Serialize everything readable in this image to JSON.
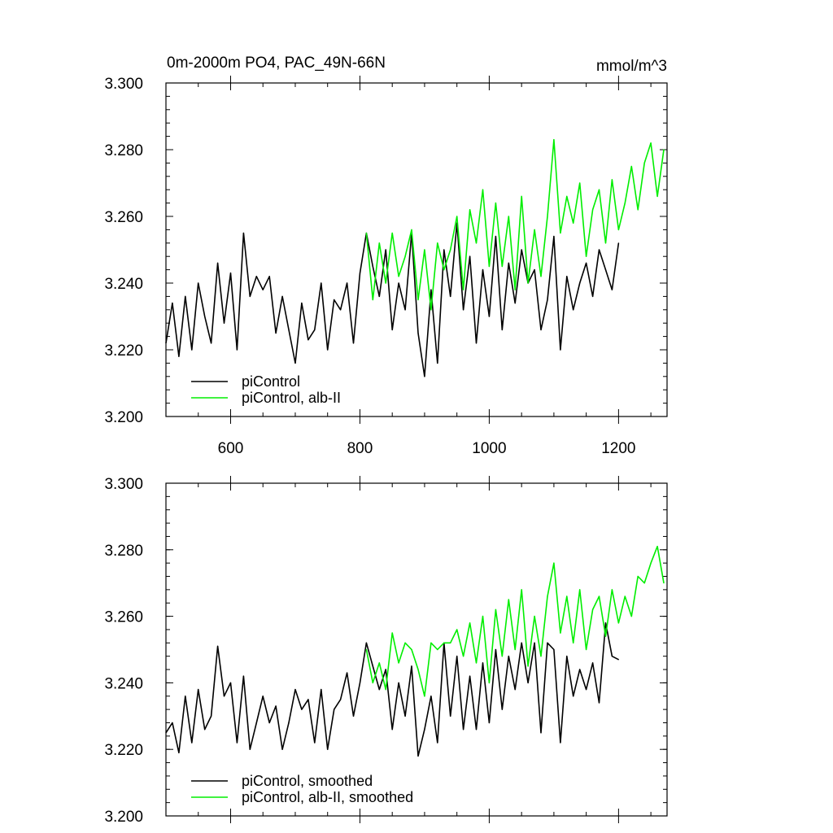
{
  "chart_data": [
    {
      "type": "line",
      "title_left": "0m-2000m PO4, PAC_49N-66N",
      "title_right": "mmol/m^3",
      "xlabel": "",
      "ylabel": "",
      "xlim": [
        500,
        1275
      ],
      "ylim": [
        3.2,
        3.3
      ],
      "x_ticks": [
        "600",
        "800",
        "1000",
        "1200"
      ],
      "y_ticks": [
        "3.200",
        "3.220",
        "3.240",
        "3.260",
        "3.280",
        "3.300"
      ],
      "legend": [
        "piControl",
        "piControl, alb-II"
      ],
      "legend_position": "bottom-left",
      "series": [
        {
          "name": "piControl",
          "color": "#000000",
          "x": [
            500,
            510,
            520,
            530,
            540,
            550,
            560,
            570,
            580,
            590,
            600,
            610,
            620,
            630,
            640,
            650,
            660,
            670,
            680,
            690,
            700,
            710,
            720,
            730,
            740,
            750,
            760,
            770,
            780,
            790,
            800,
            810,
            820,
            830,
            840,
            850,
            860,
            870,
            880,
            890,
            900,
            910,
            920,
            930,
            940,
            950,
            960,
            970,
            980,
            990,
            1000,
            1010,
            1020,
            1030,
            1040,
            1050,
            1060,
            1070,
            1080,
            1090,
            1100,
            1110,
            1120,
            1130,
            1140,
            1150,
            1160,
            1170,
            1180,
            1190,
            1200
          ],
          "values": [
            3.222,
            3.234,
            3.218,
            3.236,
            3.22,
            3.24,
            3.23,
            3.222,
            3.246,
            3.228,
            3.243,
            3.22,
            3.255,
            3.236,
            3.242,
            3.238,
            3.242,
            3.225,
            3.236,
            3.226,
            3.216,
            3.234,
            3.223,
            3.226,
            3.24,
            3.22,
            3.235,
            3.232,
            3.24,
            3.222,
            3.243,
            3.255,
            3.245,
            3.236,
            3.25,
            3.226,
            3.24,
            3.232,
            3.255,
            3.225,
            3.212,
            3.238,
            3.216,
            3.25,
            3.236,
            3.258,
            3.232,
            3.248,
            3.222,
            3.244,
            3.23,
            3.254,
            3.226,
            3.246,
            3.234,
            3.25,
            3.24,
            3.244,
            3.226,
            3.235,
            3.254,
            3.22,
            3.242,
            3.232,
            3.24,
            3.246,
            3.236,
            3.25,
            3.244,
            3.238,
            3.252
          ]
        },
        {
          "name": "piControl, alb-II",
          "color": "#00ee00",
          "x": [
            810,
            820,
            830,
            840,
            850,
            860,
            870,
            880,
            890,
            900,
            910,
            920,
            930,
            940,
            950,
            960,
            970,
            980,
            990,
            1000,
            1010,
            1020,
            1030,
            1040,
            1050,
            1060,
            1070,
            1080,
            1090,
            1100,
            1110,
            1120,
            1130,
            1140,
            1150,
            1160,
            1170,
            1180,
            1190,
            1200,
            1210,
            1220,
            1230,
            1240,
            1250,
            1260,
            1270
          ],
          "values": [
            3.255,
            3.235,
            3.252,
            3.24,
            3.255,
            3.242,
            3.248,
            3.256,
            3.235,
            3.25,
            3.232,
            3.252,
            3.244,
            3.25,
            3.26,
            3.238,
            3.262,
            3.252,
            3.268,
            3.245,
            3.264,
            3.245,
            3.26,
            3.238,
            3.266,
            3.24,
            3.256,
            3.242,
            3.26,
            3.283,
            3.255,
            3.266,
            3.258,
            3.27,
            3.248,
            3.262,
            3.268,
            3.252,
            3.271,
            3.256,
            3.264,
            3.275,
            3.262,
            3.276,
            3.282,
            3.266,
            3.28
          ]
        }
      ]
    },
    {
      "type": "line",
      "title_left": "",
      "title_right": "",
      "xlabel": "",
      "ylabel": "",
      "xlim": [
        500,
        1275
      ],
      "ylim": [
        3.2,
        3.3
      ],
      "x_ticks": [],
      "y_ticks": [
        "3.200",
        "3.220",
        "3.240",
        "3.260",
        "3.280",
        "3.300"
      ],
      "legend": [
        "piControl, smoothed",
        "piControl, alb-II, smoothed"
      ],
      "legend_position": "bottom-left",
      "series": [
        {
          "name": "piControl, smoothed",
          "color": "#000000",
          "x": [
            500,
            510,
            520,
            530,
            540,
            550,
            560,
            570,
            580,
            590,
            600,
            610,
            620,
            630,
            640,
            650,
            660,
            670,
            680,
            690,
            700,
            710,
            720,
            730,
            740,
            750,
            760,
            770,
            780,
            790,
            800,
            810,
            820,
            830,
            840,
            850,
            860,
            870,
            880,
            890,
            900,
            910,
            920,
            930,
            940,
            950,
            960,
            970,
            980,
            990,
            1000,
            1010,
            1020,
            1030,
            1040,
            1050,
            1060,
            1070,
            1080,
            1090,
            1100,
            1110,
            1120,
            1130,
            1140,
            1150,
            1160,
            1170,
            1180,
            1190,
            1200
          ],
          "values": [
            3.225,
            3.228,
            3.219,
            3.236,
            3.222,
            3.238,
            3.226,
            3.23,
            3.251,
            3.236,
            3.24,
            3.222,
            3.242,
            3.22,
            3.228,
            3.236,
            3.228,
            3.233,
            3.22,
            3.228,
            3.238,
            3.232,
            3.235,
            3.222,
            3.238,
            3.22,
            3.232,
            3.235,
            3.243,
            3.23,
            3.24,
            3.252,
            3.245,
            3.238,
            3.244,
            3.226,
            3.24,
            3.23,
            3.245,
            3.218,
            3.226,
            3.236,
            3.222,
            3.252,
            3.23,
            3.248,
            3.226,
            3.242,
            3.226,
            3.246,
            3.228,
            3.25,
            3.232,
            3.248,
            3.238,
            3.252,
            3.24,
            3.252,
            3.225,
            3.252,
            3.25,
            3.222,
            3.248,
            3.236,
            3.244,
            3.238,
            3.246,
            3.234,
            3.258,
            3.248,
            3.247
          ]
        },
        {
          "name": "piControl, alb-II, smoothed",
          "color": "#00ee00",
          "x": [
            810,
            820,
            830,
            840,
            850,
            860,
            870,
            880,
            890,
            900,
            910,
            920,
            930,
            940,
            950,
            960,
            970,
            980,
            990,
            1000,
            1010,
            1020,
            1030,
            1040,
            1050,
            1060,
            1070,
            1080,
            1090,
            1100,
            1110,
            1120,
            1130,
            1140,
            1150,
            1160,
            1170,
            1180,
            1190,
            1200,
            1210,
            1220,
            1230,
            1240,
            1250,
            1260,
            1270
          ],
          "values": [
            3.25,
            3.24,
            3.246,
            3.238,
            3.255,
            3.246,
            3.252,
            3.25,
            3.244,
            3.236,
            3.252,
            3.25,
            3.252,
            3.252,
            3.256,
            3.248,
            3.258,
            3.246,
            3.26,
            3.24,
            3.262,
            3.248,
            3.265,
            3.25,
            3.268,
            3.245,
            3.26,
            3.248,
            3.266,
            3.276,
            3.255,
            3.266,
            3.252,
            3.268,
            3.25,
            3.262,
            3.266,
            3.254,
            3.268,
            3.258,
            3.266,
            3.26,
            3.272,
            3.27,
            3.276,
            3.281,
            3.27
          ]
        }
      ]
    }
  ]
}
